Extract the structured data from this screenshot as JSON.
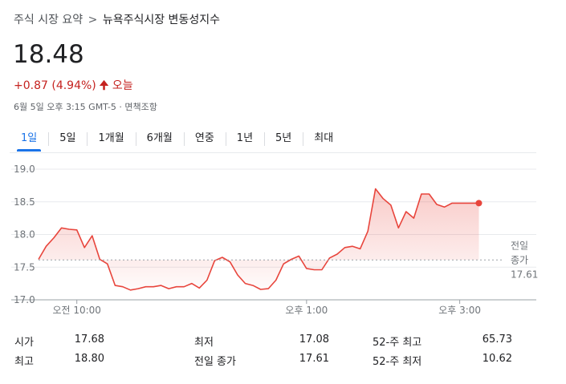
{
  "breadcrumb": {
    "root": "주식 시장 요약",
    "separator": ">",
    "current": "뉴욕주식시장 변동성지수"
  },
  "quote": {
    "price": "18.48",
    "change": "+0.87 (4.94%)",
    "direction_icon": "arrow-up-icon",
    "period": "오늘",
    "timestamp": "6월 5일 오후 3:15 GMT-5 · 면책조항"
  },
  "tabs": [
    {
      "label": "1일",
      "active": true
    },
    {
      "label": "5일",
      "active": false
    },
    {
      "label": "1개월",
      "active": false
    },
    {
      "label": "6개월",
      "active": false
    },
    {
      "label": "연중",
      "active": false
    },
    {
      "label": "1년",
      "active": false
    },
    {
      "label": "5년",
      "active": false
    },
    {
      "label": "최대",
      "active": false
    }
  ],
  "colors": {
    "line": "#e8453c",
    "fill": "#fbe4e2",
    "negative": "#c5221f",
    "accent": "#1a73e8"
  },
  "chart_data": {
    "type": "area",
    "x_unit": "hour (exchange time)",
    "ylim": [
      17.0,
      19.0
    ],
    "y_ticks": [
      "19.0",
      "18.5",
      "18.0",
      "17.5",
      "17.0"
    ],
    "y_tick_values": [
      19.0,
      18.5,
      18.0,
      17.5,
      17.0
    ],
    "x_ticks": [
      {
        "label": "오전 10:00",
        "value": 10.0
      },
      {
        "label": "오후 1:00",
        "value": 13.0
      },
      {
        "label": "오후 3:00",
        "value": 15.0
      }
    ],
    "previous_close": {
      "label_line1": "전일",
      "label_line2": "종가",
      "value": 17.61,
      "value_label": "17.61"
    },
    "x": [
      9.5,
      9.6,
      9.7,
      9.8,
      9.9,
      10.0,
      10.1,
      10.2,
      10.3,
      10.4,
      10.5,
      10.6,
      10.7,
      10.8,
      10.9,
      11.0,
      11.1,
      11.2,
      11.3,
      11.4,
      11.5,
      11.6,
      11.7,
      11.8,
      11.9,
      12.0,
      12.1,
      12.2,
      12.3,
      12.4,
      12.5,
      12.6,
      12.7,
      12.8,
      12.9,
      13.0,
      13.1,
      13.2,
      13.3,
      13.4,
      13.5,
      13.6,
      13.7,
      13.8,
      13.9,
      14.0,
      14.1,
      14.2,
      14.3,
      14.4,
      14.5,
      14.6,
      14.7,
      14.8,
      14.9,
      15.0,
      15.1,
      15.2,
      15.25
    ],
    "values": [
      17.62,
      17.82,
      17.95,
      18.1,
      18.08,
      18.07,
      17.8,
      17.98,
      17.62,
      17.55,
      17.22,
      17.2,
      17.15,
      17.17,
      17.2,
      17.2,
      17.22,
      17.17,
      17.2,
      17.2,
      17.25,
      17.18,
      17.3,
      17.6,
      17.65,
      17.58,
      17.38,
      17.25,
      17.22,
      17.16,
      17.17,
      17.3,
      17.55,
      17.62,
      17.67,
      17.48,
      17.46,
      17.46,
      17.64,
      17.7,
      17.8,
      17.82,
      17.78,
      18.05,
      18.7,
      18.55,
      18.45,
      18.1,
      18.35,
      18.25,
      18.62,
      18.62,
      18.46,
      18.42,
      18.48,
      18.48,
      18.48,
      18.48,
      18.48
    ],
    "last_point": {
      "x": 15.25,
      "value": 18.48
    }
  },
  "stats": [
    {
      "label": "시가",
      "value": "17.68"
    },
    {
      "label": "최저",
      "value": "17.08"
    },
    {
      "label": "52-주 최고",
      "value": "65.73"
    },
    {
      "label": "최고",
      "value": "18.80"
    },
    {
      "label": "전일 종가",
      "value": "17.61"
    },
    {
      "label": "52-주 최저",
      "value": "10.62"
    }
  ]
}
